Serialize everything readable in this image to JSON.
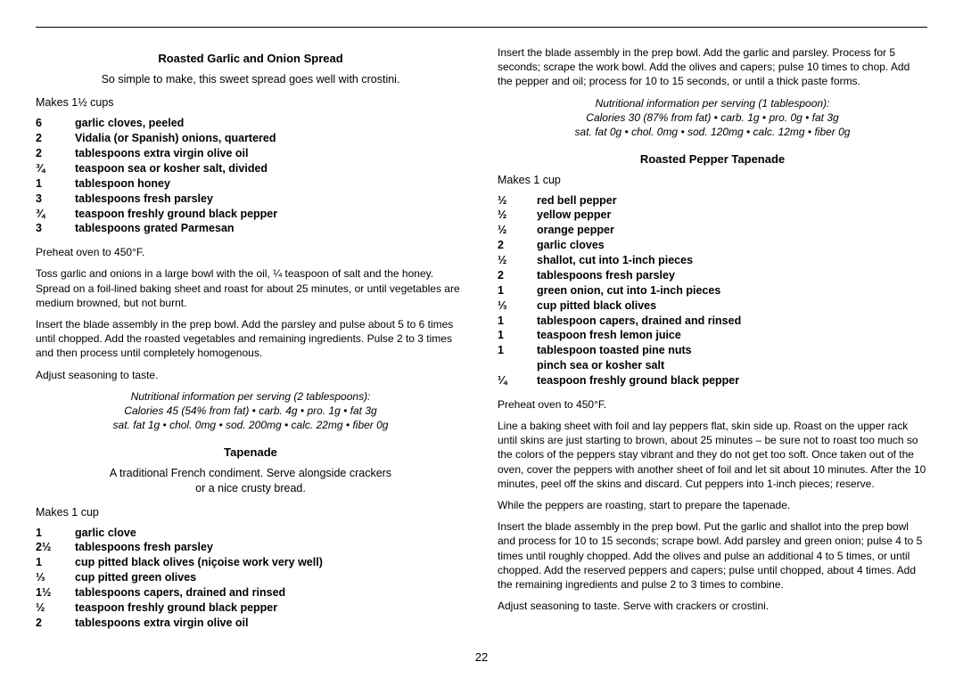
{
  "pageNumber": "22",
  "recipe1": {
    "title": "Roasted Garlic and Onion Spread",
    "intro": "So simple to make, this sweet spread goes well with crostini.",
    "makes": "Makes 1½ cups",
    "ingredients": [
      {
        "qty": "6",
        "item": "garlic cloves, peeled"
      },
      {
        "qty": "2",
        "item": "Vidalia (or Spanish) onions, quartered"
      },
      {
        "qty": "2",
        "item": "tablespoons extra virgin olive oil"
      },
      {
        "qty": "¾",
        "item": "teaspoon sea or kosher salt, divided"
      },
      {
        "qty": "1",
        "item": "tablespoon honey"
      },
      {
        "qty": "3",
        "item": "tablespoons fresh parsley"
      },
      {
        "qty": "¾",
        "item": "teaspoon freshly ground black pepper"
      },
      {
        "qty": "3",
        "item": "tablespoons grated Parmesan"
      }
    ],
    "steps": [
      "Preheat oven to 450°F.",
      "Toss garlic and onions in a large bowl with the oil, ¼ teaspoon of salt and the honey. Spread on a foil-lined baking sheet and roast for about 25 minutes, or until vegetables are medium browned, but not burnt.",
      "Insert the blade assembly in the prep bowl. Add the parsley and pulse about 5 to 6 times until chopped. Add the roasted vegetables and remaining ingredients. Pulse 2 to 3 times and then process until completely homogenous.",
      "Adjust seasoning to taste."
    ],
    "nutri1": "Nutritional information per serving (2 tablespoons):",
    "nutri2": "Calories 45 (54% from fat) • carb. 4g • pro. 1g • fat 3g",
    "nutri3": "sat. fat 1g • chol. 0mg • sod. 200mg • calc. 22mg • fiber 0g"
  },
  "recipe2": {
    "title": "Tapenade",
    "intro1": "A traditional French condiment. Serve alongside crackers",
    "intro2": "or a nice crusty bread.",
    "makes": "Makes 1 cup",
    "ingredients": [
      {
        "qty": "1",
        "item": "garlic clove"
      },
      {
        "qty": "2½",
        "item": "tablespoons fresh parsley"
      },
      {
        "qty": "1",
        "item": "cup pitted black olives (niçoise work very well)"
      },
      {
        "qty": "⅓",
        "item": "cup pitted green olives"
      },
      {
        "qty": "1½",
        "item": "tablespoons capers, drained and rinsed"
      },
      {
        "qty": "½",
        "item": "teaspoon freshly ground black pepper"
      },
      {
        "qty": "2",
        "item": "tablespoons extra virgin olive oil"
      }
    ],
    "step1": "Insert the blade assembly in the prep bowl. Add the garlic and parsley. Process for 5 seconds; scrape the work bowl. Add the olives and capers; pulse 10 times to chop. Add the pepper and oil; process for 10 to 15 seconds, or until a thick paste forms.",
    "nutri1": "Nutritional information per serving (1 tablespoon):",
    "nutri2": "Calories 30 (87% from fat) • carb. 1g • pro. 0g • fat 3g",
    "nutri3": "sat. fat 0g • chol. 0mg • sod. 120mg • calc. 12mg • fiber 0g"
  },
  "recipe3": {
    "title": "Roasted Pepper Tapenade",
    "makes": "Makes 1 cup",
    "ingredients": [
      {
        "qty": "½",
        "item": "red bell pepper"
      },
      {
        "qty": "½",
        "item": "yellow pepper"
      },
      {
        "qty": "½",
        "item": "orange pepper"
      },
      {
        "qty": "2",
        "item": "garlic cloves"
      },
      {
        "qty": "½",
        "item": "shallot, cut into 1-inch pieces"
      },
      {
        "qty": "2",
        "item": "tablespoons fresh parsley"
      },
      {
        "qty": "1",
        "item": "green onion, cut into 1-inch pieces"
      },
      {
        "qty": "⅓",
        "item": "cup pitted black olives"
      },
      {
        "qty": "1",
        "item": "tablespoon capers, drained and rinsed"
      },
      {
        "qty": "1",
        "item": "teaspoon fresh lemon juice"
      },
      {
        "qty": "1",
        "item": "tablespoon toasted pine nuts"
      },
      {
        "qty": "",
        "item": "pinch sea or kosher salt"
      },
      {
        "qty": "¼",
        "item": "teaspoon freshly ground black pepper"
      }
    ],
    "steps": [
      "Preheat oven to 450°F.",
      "Line a baking sheet with foil and lay peppers flat, skin side up. Roast on the upper rack until skins are just starting to brown, about 25 minutes – be sure not to roast too much so the colors of the peppers stay vibrant and they do not get too soft. Once taken out of the oven, cover the peppers with another sheet of foil and let sit about 10 minutes. After the 10 minutes, peel off the skins and discard. Cut peppers into 1-inch pieces; reserve.",
      "While the peppers are roasting, start to prepare the tapenade.",
      "Insert the blade assembly in the prep bowl. Put the garlic and shallot into the prep bowl and process for 10 to 15 seconds; scrape bowl. Add parsley and green onion; pulse 4 to 5 times until roughly chopped. Add the olives and pulse an additional 4 to 5 times, or until chopped. Add the reserved peppers and capers; pulse until chopped, about 4 times. Add the remaining ingredients and pulse 2 to 3 times to combine.",
      "Adjust seasoning to taste. Serve with crackers or crostini."
    ]
  }
}
